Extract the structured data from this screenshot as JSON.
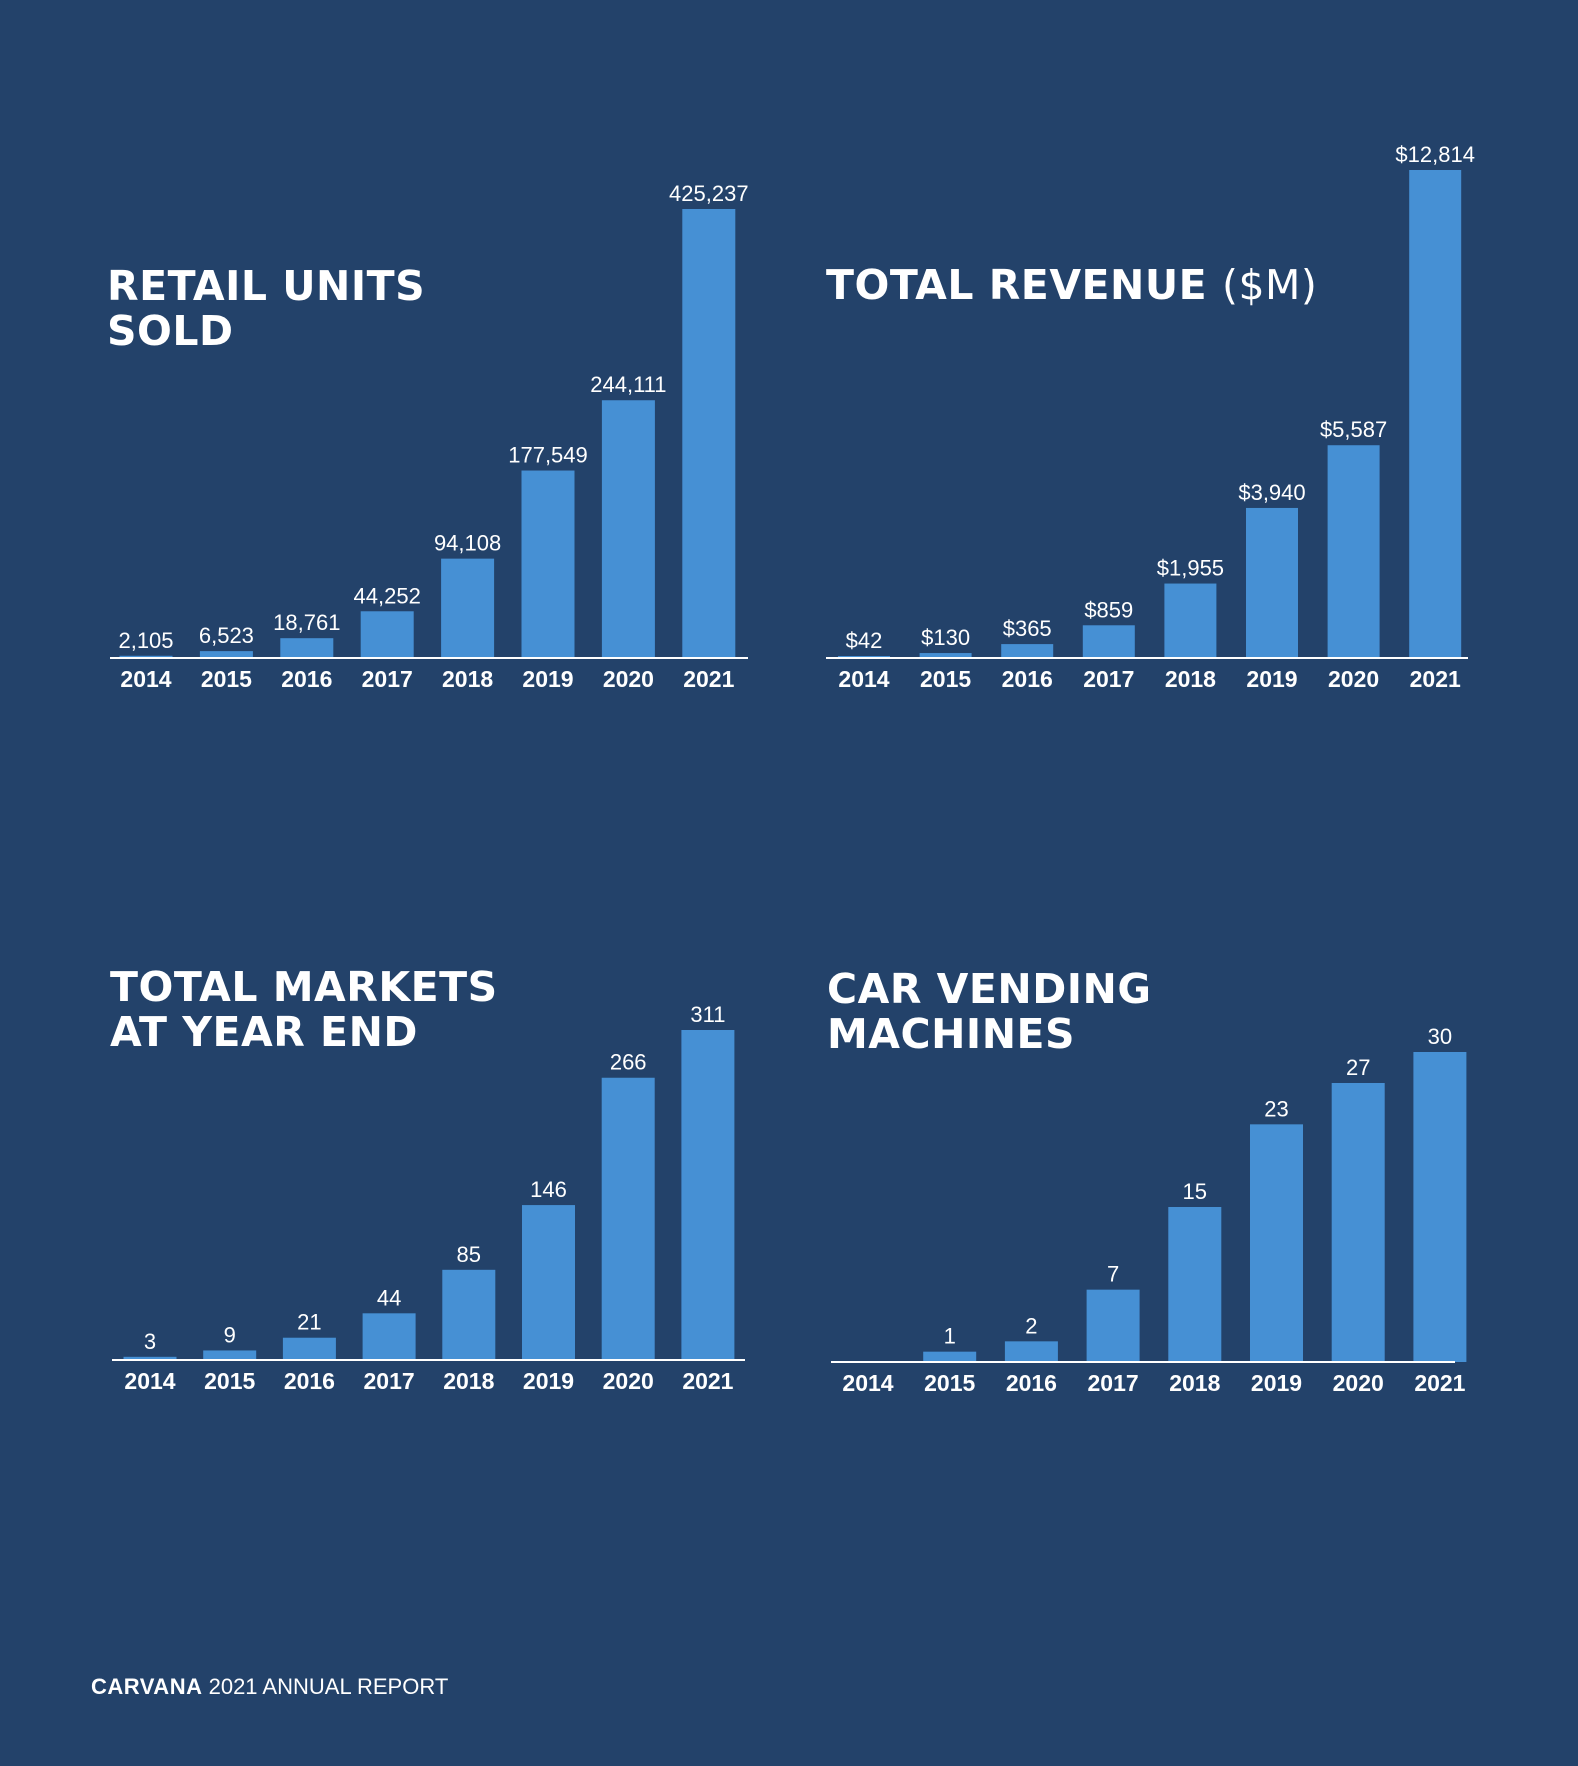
{
  "footer": {
    "brand": "CARVANA",
    "text": " 2021 ANNUAL REPORT"
  },
  "colors": {
    "background": "#23426a",
    "bar": "#4690d4",
    "text": "#ffffff"
  },
  "chart_data": [
    {
      "type": "bar",
      "title_line1": "RETAIL UNITS",
      "title_line2": "SOLD",
      "title_unit": "",
      "categories": [
        "2014",
        "2015",
        "2016",
        "2017",
        "2018",
        "2019",
        "2020",
        "2021"
      ],
      "values": [
        2105,
        6523,
        18761,
        44252,
        94108,
        177549,
        244111,
        425237
      ],
      "labels": [
        "2,105",
        "6,523",
        "18,761",
        "44,252",
        "94,108",
        "177,549",
        "244,111",
        "425,237"
      ],
      "ylim": [
        0,
        425237
      ],
      "grid": false
    },
    {
      "type": "bar",
      "title_line1": "TOTAL REVENUE",
      "title_line2": "",
      "title_unit": "($M)",
      "categories": [
        "2014",
        "2015",
        "2016",
        "2017",
        "2018",
        "2019",
        "2020",
        "2021"
      ],
      "values": [
        42,
        130,
        365,
        859,
        1955,
        3940,
        5587,
        12814
      ],
      "labels": [
        "$42",
        "$130",
        "$365",
        "$859",
        "$1,955",
        "$3,940",
        "$5,587",
        "$12,814"
      ],
      "ylim": [
        0,
        12814
      ],
      "grid": false
    },
    {
      "type": "bar",
      "title_line1": "TOTAL MARKETS",
      "title_line2": "AT YEAR END",
      "title_unit": "",
      "categories": [
        "2014",
        "2015",
        "2016",
        "2017",
        "2018",
        "2019",
        "2020",
        "2021"
      ],
      "values": [
        3,
        9,
        21,
        44,
        85,
        146,
        266,
        311
      ],
      "labels": [
        "3",
        "9",
        "21",
        "44",
        "85",
        "146",
        "266",
        "311"
      ],
      "ylim": [
        0,
        311
      ],
      "grid": false
    },
    {
      "type": "bar",
      "title_line1": "CAR VENDING",
      "title_line2": "MACHINES",
      "title_unit": "",
      "categories": [
        "2014",
        "2015",
        "2016",
        "2017",
        "2018",
        "2019",
        "2020",
        "2021"
      ],
      "values": [
        0,
        1,
        2,
        7,
        15,
        23,
        27,
        30
      ],
      "labels": [
        "",
        "1",
        "2",
        "7",
        "15",
        "23",
        "27",
        "30"
      ],
      "ylim": [
        0,
        30
      ],
      "grid": false
    }
  ]
}
